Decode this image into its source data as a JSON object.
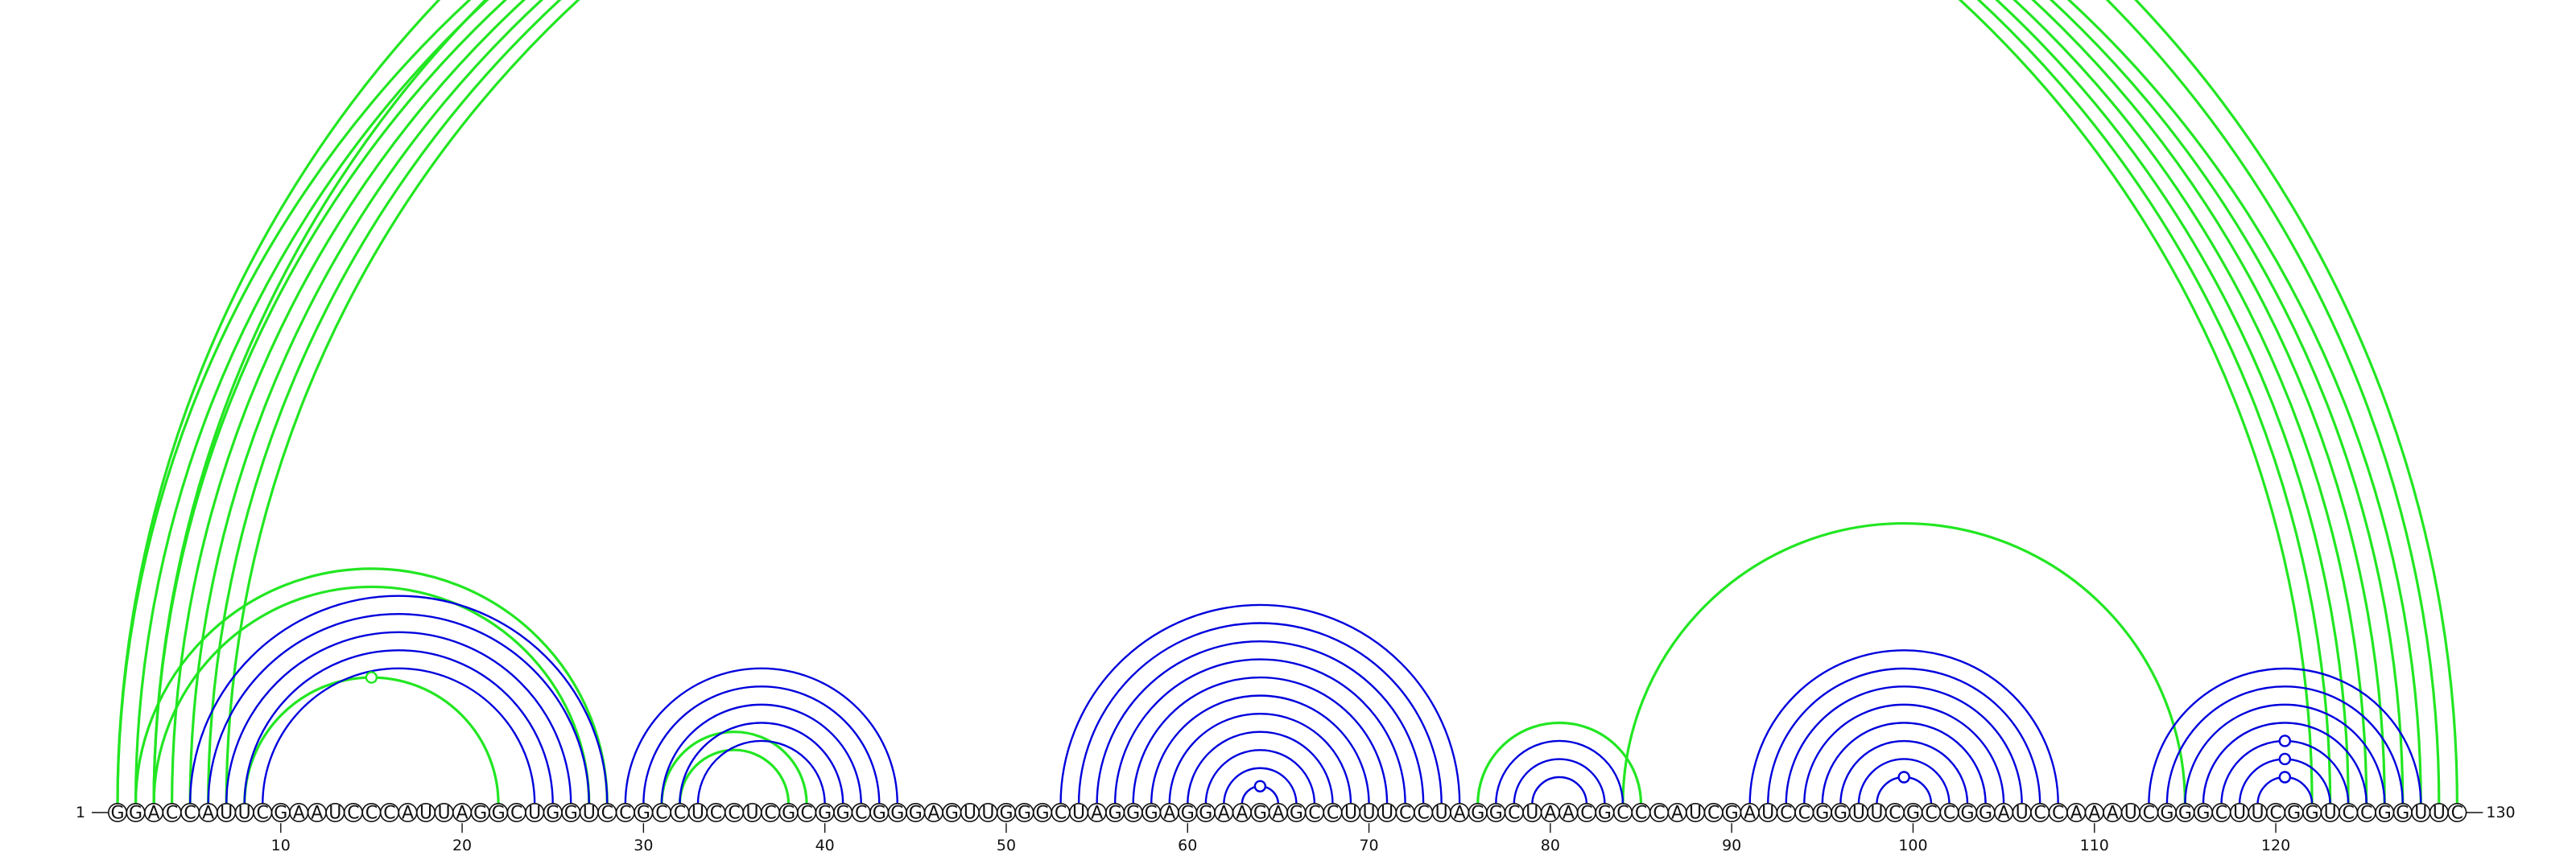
{
  "sequence": "GGACCAUUCGAAUCCCAUUAGGCUGGUCCGCCUCCUCGCGGCGGGAGUUGGGCUAGGGAGGAAGAGCCUUUCCUAGGCUAACGCCCAUCGAUCCGGUUCGCCGGAUCCAAAUCGGGCUUCGGUCCGGUUC",
  "labels": {
    "start": "1",
    "end": "130"
  },
  "ticks": [
    10,
    20,
    30,
    40,
    50,
    60,
    70,
    80,
    90,
    100,
    110,
    120
  ],
  "colors": {
    "helix": "#0000dd",
    "pseudoknot": "#22e622",
    "backbone": "#111111"
  },
  "arcs": {
    "blue": [
      [
        5,
        28
      ],
      [
        6,
        27
      ],
      [
        7,
        26
      ],
      [
        8,
        25
      ],
      [
        9,
        24
      ],
      [
        29,
        44
      ],
      [
        30,
        43
      ],
      [
        31,
        42
      ],
      [
        32,
        41
      ],
      [
        33,
        40
      ],
      [
        53,
        75
      ],
      [
        54,
        74
      ],
      [
        55,
        73
      ],
      [
        56,
        72
      ],
      [
        57,
        71
      ],
      [
        58,
        70
      ],
      [
        59,
        69
      ],
      [
        60,
        68
      ],
      [
        61,
        67
      ],
      [
        62,
        66
      ],
      [
        63,
        65
      ],
      [
        77,
        84
      ],
      [
        78,
        83
      ],
      [
        79,
        82
      ],
      [
        91,
        108
      ],
      [
        92,
        107
      ],
      [
        93,
        106
      ],
      [
        94,
        105
      ],
      [
        95,
        104
      ],
      [
        96,
        103
      ],
      [
        97,
        102
      ],
      [
        98,
        101
      ],
      [
        113,
        128
      ],
      [
        114,
        127
      ],
      [
        115,
        126
      ],
      [
        116,
        125
      ],
      [
        117,
        124
      ],
      [
        118,
        123
      ],
      [
        119,
        122
      ]
    ],
    "green": [
      [
        1,
        122
      ],
      [
        2,
        123
      ],
      [
        3,
        124
      ],
      [
        4,
        125
      ],
      [
        5,
        126
      ],
      [
        6,
        127
      ],
      [
        7,
        128
      ],
      [
        1,
        130
      ],
      [
        3,
        129
      ],
      [
        2,
        28
      ],
      [
        3,
        27
      ],
      [
        8,
        22
      ],
      [
        31,
        39
      ],
      [
        32,
        38
      ],
      [
        76,
        85
      ],
      [
        84,
        115
      ]
    ]
  },
  "markers": {
    "blue": [
      [
        63,
        65
      ],
      [
        98,
        101
      ],
      [
        117,
        124
      ],
      [
        118,
        123
      ],
      [
        119,
        122
      ]
    ],
    "green": [
      [
        8,
        22
      ],
      [
        1,
        130
      ]
    ]
  }
}
